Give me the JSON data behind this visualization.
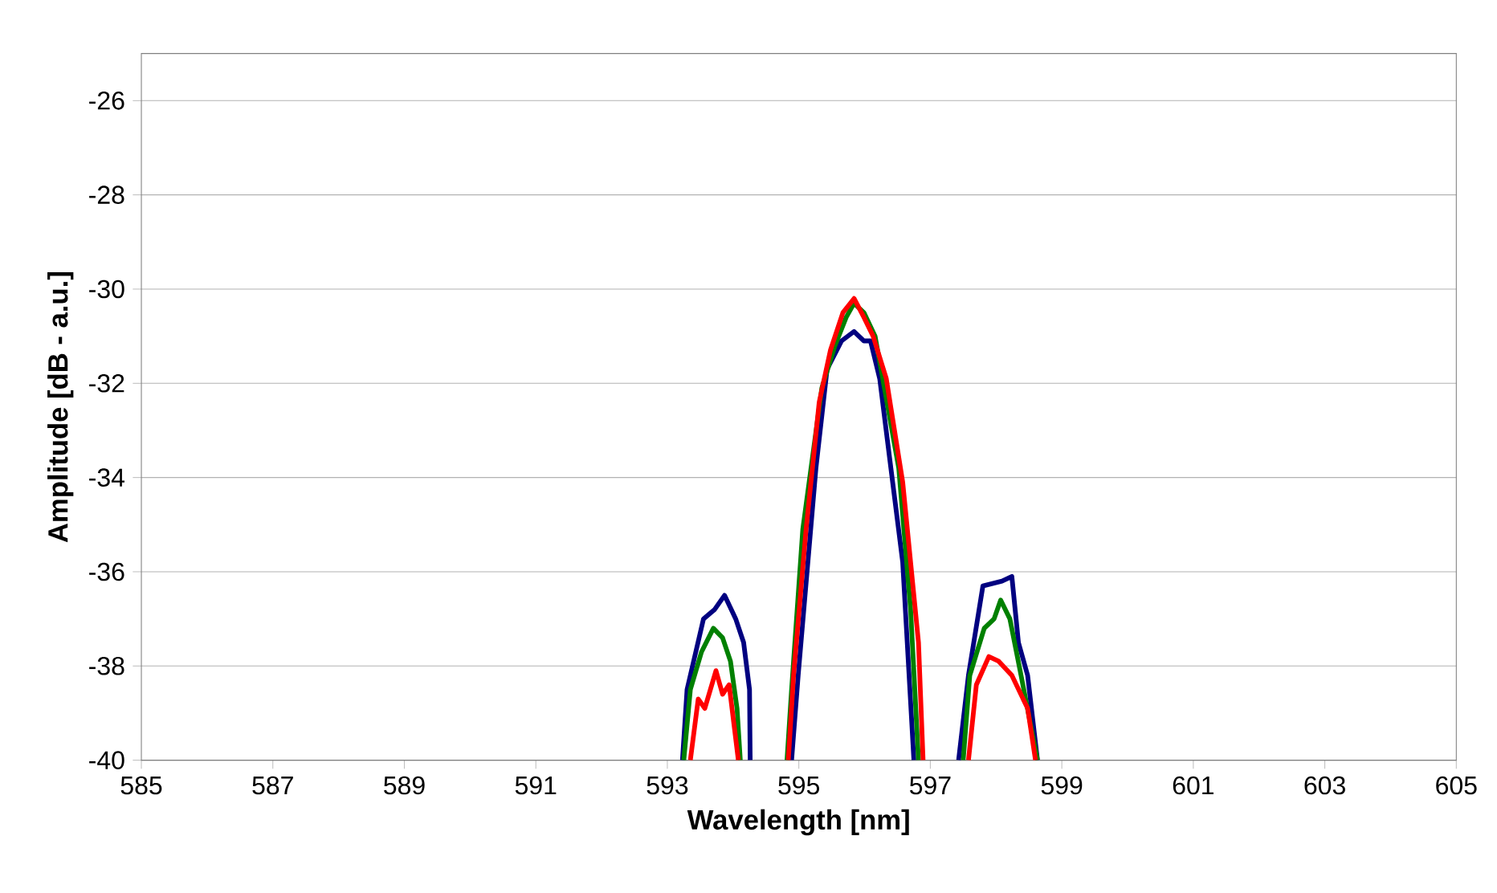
{
  "chart_data": {
    "type": "line",
    "xlabel": "Wavelength [nm]",
    "ylabel": "Amplitude [dB - a.u.]",
    "xlim": [
      585,
      605
    ],
    "xticks": [
      585,
      587,
      589,
      591,
      593,
      595,
      597,
      599,
      601,
      603,
      605
    ],
    "ylim": [
      -40,
      -25
    ],
    "yticks": [
      -40,
      -38,
      -36,
      -34,
      -32,
      -30,
      -28,
      -26
    ],
    "grid": "y",
    "marker": "none",
    "line_style": "solid",
    "series": [
      {
        "color": "#000080",
        "x": [
          593.23,
          593.3,
          593.55,
          593.72,
          593.87,
          594.04,
          594.16,
          594.25,
          594.26,
          594.5,
          594.89,
          594.99,
          595.26,
          595.43,
          595.65,
          595.84,
          595.99,
          596.09,
          596.23,
          596.4,
          596.58,
          596.75,
          597.1,
          597.43,
          597.58,
          597.8,
          598.09,
          598.24,
          598.34,
          598.48,
          598.63
        ],
        "values": [
          -40,
          -38.5,
          -37.0,
          -36.8,
          -36.5,
          -37.0,
          -37.5,
          -38.5,
          -40,
          null,
          -40,
          -38.2,
          -33.8,
          -31.7,
          -31.1,
          -30.9,
          -31.1,
          -31.1,
          -31.9,
          -33.8,
          -35.8,
          -40,
          null,
          -40,
          -38.2,
          -36.3,
          -36.2,
          -36.1,
          -37.5,
          -38.2,
          -40
        ]
      },
      {
        "color": "#008000",
        "x": [
          593.25,
          593.35,
          593.52,
          593.7,
          593.84,
          593.96,
          594.06,
          594.11,
          594.5,
          594.82,
          594.89,
          595.06,
          595.35,
          595.55,
          595.72,
          595.84,
          595.99,
          596.16,
          596.52,
          596.7,
          596.82,
          597.1,
          597.5,
          597.6,
          597.82,
          597.97,
          598.07,
          598.21,
          598.38,
          598.63
        ],
        "values": [
          -40,
          -38.5,
          -37.7,
          -37.2,
          -37.4,
          -37.9,
          -38.9,
          -40,
          null,
          -40,
          -38.5,
          -35.1,
          -32.1,
          -31.2,
          -30.6,
          -30.3,
          -30.5,
          -31.0,
          -33.8,
          -36.8,
          -40,
          null,
          -40,
          -38.2,
          -37.2,
          -37.0,
          -36.6,
          -37.0,
          -38.2,
          -40
        ]
      },
      {
        "color": "#ff0000",
        "x": [
          593.35,
          593.47,
          593.57,
          593.74,
          593.84,
          593.94,
          594.08,
          594.5,
          594.84,
          594.92,
          595.11,
          595.31,
          595.48,
          595.67,
          595.84,
          595.99,
          596.13,
          596.33,
          596.58,
          596.82,
          596.89,
          597.2,
          597.58,
          597.7,
          597.89,
          598.04,
          598.24,
          598.48,
          598.6
        ],
        "values": [
          -40,
          -38.7,
          -38.9,
          -38.1,
          -38.6,
          -38.4,
          -40,
          null,
          -40,
          -38.2,
          -35.1,
          -32.4,
          -31.3,
          -30.5,
          -30.2,
          -30.6,
          -31.0,
          -31.9,
          -34.1,
          -37.5,
          -40,
          null,
          -40,
          -38.4,
          -37.8,
          -37.9,
          -38.2,
          -38.9,
          -40
        ]
      }
    ]
  }
}
